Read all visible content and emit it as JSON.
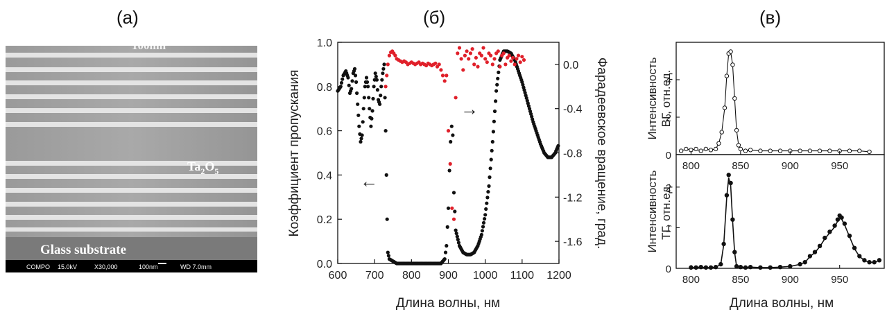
{
  "panels": {
    "a": "(а)",
    "b": "(б)",
    "c": "(в)"
  },
  "sem": {
    "scale_label": "100nm",
    "layer_label": "Ta",
    "layer_sub1": "2",
    "layer_o": "O",
    "layer_sub2": "5",
    "substrate_label": "Glass substrate",
    "info_compo": "COMPO",
    "info_kv": "15.0kV",
    "info_mag": "X30,000",
    "info_bar": "100nm",
    "info_wd": "WD 7.0mm"
  },
  "colors": {
    "black_points": "#111111",
    "red_points": "#e0202a",
    "line": "#111111"
  },
  "chart_data": [
    {
      "type": "scatter",
      "xlabel": "Длина волны, нм",
      "ylabel": "Коэффициент пропускания",
      "y2label": "Фарадеевское вращение, град.",
      "xlim": [
        600,
        1200
      ],
      "ylim": [
        0,
        1.0
      ],
      "y2lim": [
        -1.8,
        0.2
      ],
      "xticks": [
        "600",
        "700",
        "800",
        "900",
        "1000",
        "1100",
        "1200"
      ],
      "yticks": [
        "0.0",
        "0.2",
        "0.4",
        "0.6",
        "0.8",
        "1.0"
      ],
      "y2ticks": [
        "0.0",
        "-0.4",
        "-0.8",
        "-1.2",
        "-1.6"
      ],
      "series": [
        {
          "axis": "left",
          "color": "black",
          "x": [
            600,
            608,
            615,
            622,
            628,
            633,
            637,
            642,
            646,
            650,
            654,
            658,
            662,
            666,
            670,
            674,
            678,
            682,
            686,
            690,
            694,
            698,
            702,
            706,
            710,
            714,
            718,
            722,
            726,
            728,
            730,
            732,
            734,
            736,
            740,
            750,
            760,
            780,
            800,
            820,
            840,
            860,
            880,
            890,
            895,
            900,
            903,
            906,
            909,
            912,
            915,
            920,
            930,
            940,
            950,
            960,
            970,
            980,
            990,
            1000,
            1010,
            1020,
            1030,
            1040,
            1050,
            1060,
            1070,
            1080,
            1090,
            1100,
            1110,
            1120,
            1130,
            1140,
            1150,
            1160,
            1170,
            1180,
            1190,
            1200
          ],
          "values": [
            0.78,
            0.8,
            0.85,
            0.87,
            0.84,
            0.77,
            0.79,
            0.86,
            0.88,
            0.82,
            0.72,
            0.62,
            0.55,
            0.58,
            0.7,
            0.8,
            0.84,
            0.8,
            0.7,
            0.62,
            0.69,
            0.8,
            0.86,
            0.83,
            0.74,
            0.72,
            0.8,
            0.86,
            0.9,
            0.75,
            0.6,
            0.4,
            0.2,
            0.05,
            0.02,
            0.01,
            0.0,
            0.0,
            0.0,
            0.0,
            0.0,
            0.0,
            0.0,
            0.02,
            0.08,
            0.25,
            0.42,
            0.55,
            0.62,
            0.58,
            0.32,
            0.15,
            0.08,
            0.05,
            0.04,
            0.04,
            0.05,
            0.08,
            0.13,
            0.22,
            0.35,
            0.55,
            0.78,
            0.92,
            0.96,
            0.96,
            0.95,
            0.92,
            0.87,
            0.82,
            0.76,
            0.7,
            0.64,
            0.59,
            0.54,
            0.5,
            0.48,
            0.48,
            0.5,
            0.54
          ]
        },
        {
          "axis": "right",
          "color": "red",
          "x": [
            730,
            733,
            736,
            740,
            744,
            748,
            752,
            756,
            760,
            765,
            770,
            775,
            780,
            785,
            790,
            795,
            800,
            805,
            810,
            815,
            820,
            825,
            830,
            835,
            840,
            845,
            850,
            855,
            860,
            865,
            870,
            875,
            880,
            885,
            890,
            895,
            900,
            905,
            910,
            915,
            920,
            925,
            930,
            935,
            940,
            945,
            950,
            955,
            960,
            965,
            970,
            975,
            980,
            985,
            990,
            995,
            1000,
            1005,
            1010,
            1015,
            1020,
            1025,
            1030,
            1035,
            1040,
            1045,
            1050,
            1055,
            1060,
            1065,
            1070,
            1075,
            1080,
            1085,
            1090,
            1095,
            1100,
            1105
          ],
          "values": [
            -0.2,
            -0.1,
            0.0,
            0.08,
            0.11,
            0.12,
            0.1,
            0.08,
            0.05,
            0.04,
            0.03,
            0.02,
            0.03,
            0.02,
            0.0,
            0.01,
            0.02,
            0.01,
            0.0,
            0.01,
            0.02,
            0.0,
            0.01,
            0.0,
            -0.01,
            0.01,
            0.0,
            -0.01,
            0.0,
            0.01,
            -0.02,
            0.0,
            -0.05,
            -0.1,
            -0.15,
            -0.1,
            -0.6,
            -0.9,
            -1.3,
            -1.4,
            -0.3,
            0.1,
            0.15,
            0.05,
            -0.05,
            0.08,
            0.12,
            0.05,
            0.1,
            0.14,
            0.0,
            0.06,
            -0.02,
            0.1,
            0.08,
            0.15,
            0.05,
            0.02,
            0.1,
            0.08,
            0.0,
            0.05,
            0.1,
            0.12,
            -0.02,
            0.08,
            0.1,
            0.0,
            0.06,
            0.08,
            0.03,
            0.06,
            0.0,
            0.05,
            0.08,
            0.02,
            0.07,
            0.04
          ]
        }
      ],
      "annotations": [
        "←",
        "→"
      ]
    },
    {
      "type": "scatter",
      "ylabel": "Интенсивность ВГ, отн.ед.",
      "xlim": [
        785,
        995
      ],
      "ylim": [
        0,
        6
      ],
      "xticks": [
        "800",
        "850",
        "900",
        "950"
      ],
      "yticks": [
        "0",
        "2",
        "4"
      ],
      "series": [
        {
          "marker": "open-circle",
          "x": [
            790,
            795,
            800,
            805,
            810,
            815,
            820,
            825,
            828,
            831,
            834,
            836,
            838,
            840,
            842,
            844,
            846,
            848,
            850,
            855,
            860,
            870,
            880,
            890,
            900,
            910,
            920,
            930,
            940,
            950,
            960,
            970,
            980
          ],
          "values": [
            0.2,
            0.3,
            0.25,
            0.3,
            0.2,
            0.3,
            0.25,
            0.3,
            0.6,
            1.2,
            2.5,
            4.2,
            5.4,
            5.5,
            4.8,
            3.0,
            1.3,
            0.5,
            0.3,
            0.2,
            0.25,
            0.2,
            0.2,
            0.2,
            0.2,
            0.2,
            0.2,
            0.2,
            0.2,
            0.2,
            0.2,
            0.2,
            0.15
          ]
        }
      ]
    },
    {
      "type": "scatter",
      "xlabel": "Длина волны, нм",
      "ylabel": "Интенсивность ТГ, отн.ед.",
      "xlim": [
        785,
        995
      ],
      "ylim": [
        0,
        2.8
      ],
      "xticks": [
        "800",
        "850",
        "900",
        "950"
      ],
      "yticks": [
        "0",
        "1",
        "2"
      ],
      "series": [
        {
          "marker": "filled-circle",
          "x": [
            800,
            805,
            810,
            815,
            820,
            825,
            830,
            833,
            836,
            838,
            840,
            842,
            844,
            846,
            850,
            855,
            860,
            870,
            880,
            890,
            900,
            910,
            915,
            920,
            925,
            930,
            935,
            940,
            945,
            948,
            950,
            952,
            955,
            960,
            965,
            970,
            975,
            980,
            985,
            990
          ],
          "values": [
            0.02,
            0.02,
            0.03,
            0.02,
            0.02,
            0.03,
            0.1,
            0.6,
            1.8,
            2.3,
            2.1,
            1.2,
            0.4,
            0.05,
            0.03,
            0.02,
            0.03,
            0.02,
            0.02,
            0.03,
            0.05,
            0.1,
            0.15,
            0.3,
            0.4,
            0.55,
            0.75,
            0.9,
            1.05,
            1.2,
            1.3,
            1.25,
            1.1,
            0.8,
            0.5,
            0.3,
            0.2,
            0.15,
            0.15,
            0.2
          ]
        }
      ]
    }
  ],
  "labels": {
    "b_xlabel": "Длина волны, нм",
    "b_ylabel": "Коэффициент пропускания",
    "b_y2label": "Фарадеевское вращение, град.",
    "c_ylabel_top_1": "Интенсивность",
    "c_ylabel_top_2": "ВГ, отн.ед.",
    "c_ylabel_bot_1": "Интенсивность",
    "c_ylabel_bot_2": "ТГ, отн.ед.",
    "c_xlabel": "Длина волны, нм"
  }
}
